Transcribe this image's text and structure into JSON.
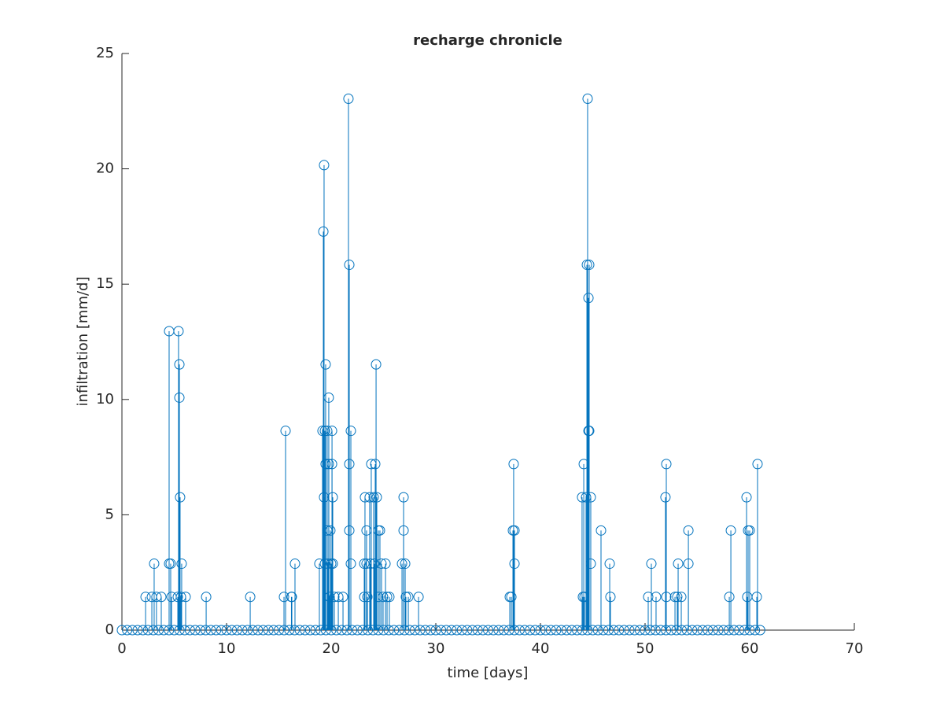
{
  "chart_data": {
    "type": "stem",
    "title": "recharge chronicle",
    "xlabel": "time [days]",
    "ylabel": "infiltration [mm/d]",
    "color": "#0072bd",
    "xlim": [
      0,
      70
    ],
    "xticks": [
      0,
      10,
      20,
      30,
      40,
      50,
      60,
      70
    ],
    "ylim": [
      0,
      25
    ],
    "yticks": [
      0,
      5,
      10,
      15,
      20,
      25
    ],
    "x": [
      2.26,
      2.86,
      3.08,
      3.3,
      3.76,
      4.51,
      4.51,
      4.66,
      4.74,
      5.41,
      5.49,
      5.49,
      5.56,
      5.34,
      5.71,
      5.64,
      6.09,
      8.05,
      12.26,
      15.64,
      15.49,
      16.2,
      16.24,
      16.54,
      18.87,
      19.17,
      19.25,
      19.32,
      19.4,
      19.32,
      19.4,
      19.47,
      19.47,
      19.62,
      19.62,
      19.7,
      19.77,
      19.77,
      19.85,
      19.92,
      20.0,
      20.08,
      20.08,
      20.15,
      20.15,
      20.3,
      20.68,
      21.13,
      21.65,
      21.73,
      21.88,
      21.73,
      21.73,
      21.88,
      23.23,
      23.16,
      23.38,
      23.38,
      23.16,
      23.46,
      23.68,
      23.83,
      23.76,
      24.06,
      24.21,
      24.29,
      24.14,
      24.36,
      24.51,
      24.66,
      24.51,
      24.81,
      24.96,
      25.19,
      25.34,
      25.56,
      26.77,
      26.92,
      26.92,
      27.07,
      27.14,
      27.37,
      28.35,
      37.07,
      37.22,
      37.37,
      37.44,
      37.52,
      37.52,
      43.98,
      44.06,
      44.14,
      44.21,
      44.36,
      44.44,
      44.51,
      44.59,
      44.66,
      44.59,
      44.66,
      44.81,
      44.81,
      45.79,
      46.62,
      46.69,
      50.3,
      50.6,
      51.05,
      51.95,
      52.03,
      52.03,
      52.86,
      53.08,
      53.16,
      53.46,
      54.14,
      54.14,
      58.05,
      58.2,
      59.7,
      59.77,
      59.85,
      60.0,
      60.68,
      60.75,
      0,
      0.5,
      1,
      1.5,
      2,
      2.5,
      3,
      3.5,
      4,
      4.5,
      5,
      5.5,
      6,
      6.5,
      7,
      7.5,
      8,
      8.5,
      9,
      9.5,
      10,
      10.5,
      11,
      11.5,
      12,
      12.5,
      13,
      13.5,
      14,
      14.5,
      15,
      15.5,
      16,
      16.5,
      17,
      17.5,
      18,
      18.5,
      19,
      19.5,
      20,
      20.5,
      21,
      21.5,
      22,
      22.5,
      23,
      23.5,
      24,
      24.5,
      25,
      25.5,
      26,
      26.5,
      27,
      27.5,
      28,
      28.5,
      29,
      29.5,
      30,
      30.5,
      31,
      31.5,
      32,
      32.5,
      33,
      33.5,
      34,
      34.5,
      35,
      35.5,
      36,
      36.5,
      37,
      37.5,
      38,
      38.5,
      39,
      39.5,
      40,
      40.5,
      41,
      41.5,
      42,
      42.5,
      43,
      43.5,
      44,
      44.5,
      45,
      45.5,
      46,
      46.5,
      47,
      47.5,
      48,
      48.5,
      49,
      49.5,
      50,
      50.5,
      51,
      51.5,
      52,
      52.5,
      53,
      53.5,
      54,
      54.5,
      55,
      55.5,
      56,
      56.5,
      57,
      57.5,
      58,
      58.5,
      59,
      59.5,
      60,
      60.5,
      61
    ],
    "values": [
      1.44,
      1.44,
      2.88,
      1.44,
      1.44,
      12.96,
      2.88,
      2.88,
      1.44,
      12.96,
      11.52,
      10.08,
      5.76,
      1.44,
      2.88,
      1.44,
      1.44,
      1.44,
      1.44,
      8.64,
      1.44,
      1.44,
      1.44,
      2.88,
      2.88,
      8.64,
      17.28,
      20.16,
      8.64,
      5.76,
      2.88,
      11.52,
      7.2,
      8.64,
      4.32,
      2.88,
      10.08,
      7.2,
      1.44,
      4.32,
      2.88,
      8.64,
      7.2,
      5.76,
      2.88,
      1.44,
      1.44,
      1.44,
      23.04,
      15.84,
      8.64,
      7.2,
      4.32,
      2.88,
      5.76,
      2.88,
      4.32,
      2.88,
      1.44,
      1.44,
      5.76,
      7.2,
      2.88,
      5.76,
      7.2,
      11.52,
      2.88,
      5.76,
      4.32,
      4.32,
      1.44,
      2.88,
      1.44,
      2.88,
      1.44,
      1.44,
      2.88,
      5.76,
      4.32,
      2.88,
      1.44,
      1.44,
      1.44,
      1.44,
      1.44,
      4.32,
      7.2,
      4.32,
      2.88,
      5.76,
      1.44,
      7.2,
      1.44,
      5.76,
      15.84,
      23.04,
      14.4,
      15.84,
      8.64,
      8.64,
      5.76,
      2.88,
      4.32,
      2.88,
      1.44,
      1.44,
      2.88,
      1.44,
      5.76,
      7.2,
      1.44,
      1.44,
      1.44,
      2.88,
      1.44,
      4.32,
      2.88,
      1.44,
      4.32,
      5.76,
      1.44,
      4.32,
      4.32,
      1.44,
      7.2,
      0,
      0,
      0,
      0,
      0,
      0,
      0,
      0,
      0,
      0,
      0,
      0,
      0,
      0,
      0,
      0,
      0,
      0,
      0,
      0,
      0,
      0,
      0,
      0,
      0,
      0,
      0,
      0,
      0,
      0,
      0,
      0,
      0,
      0,
      0,
      0,
      0,
      0,
      0,
      0,
      0,
      0,
      0,
      0,
      0,
      0,
      0,
      0,
      0,
      0,
      0,
      0,
      0,
      0,
      0,
      0,
      0,
      0,
      0,
      0,
      0,
      0,
      0,
      0,
      0,
      0,
      0,
      0,
      0,
      0,
      0,
      0,
      0,
      0,
      0,
      0,
      0,
      0,
      0,
      0,
      0,
      0,
      0,
      0,
      0,
      0,
      0,
      0,
      0,
      0,
      0,
      0,
      0,
      0,
      0,
      0,
      0,
      0,
      0,
      0,
      0,
      0,
      0,
      0,
      0,
      0,
      0,
      0,
      0,
      0,
      0,
      0,
      0,
      0,
      0,
      0,
      0,
      0,
      0,
      0,
      0,
      0,
      0
    ]
  }
}
